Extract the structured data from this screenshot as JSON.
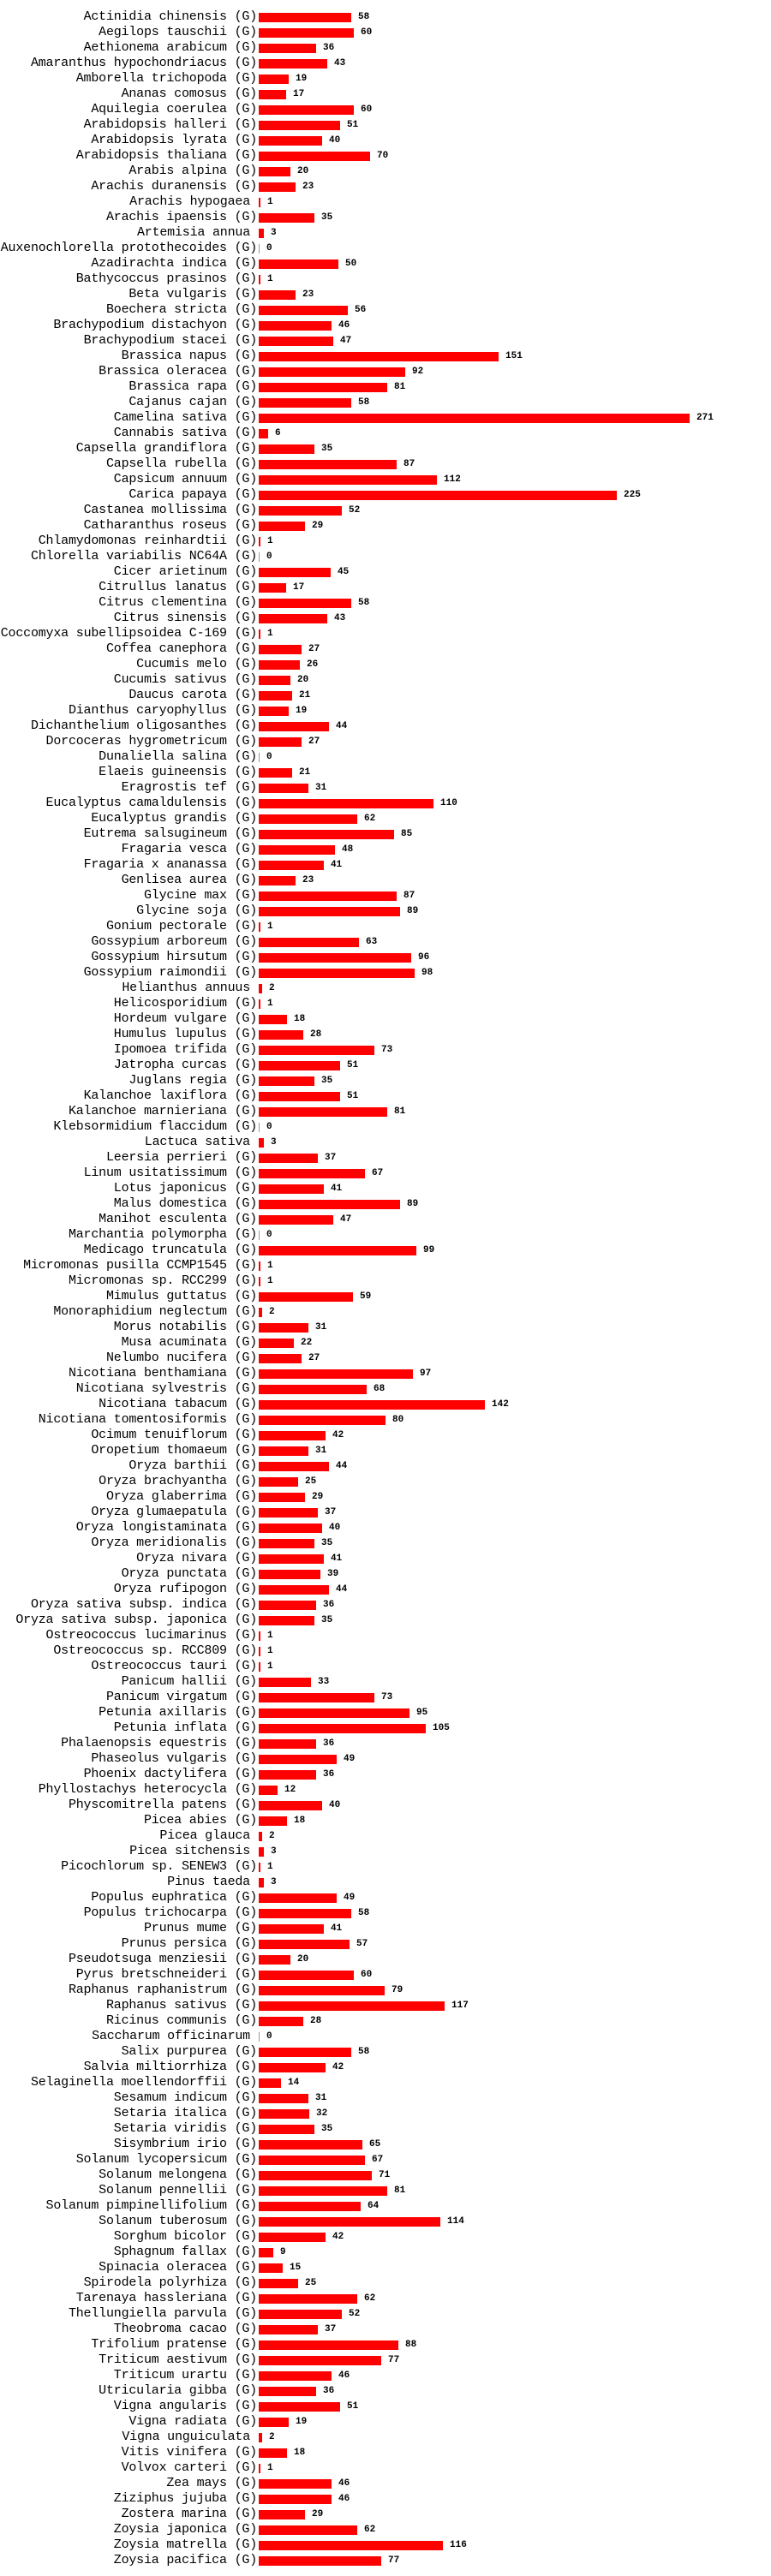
{
  "chart_data": {
    "type": "bar",
    "orientation": "horizontal",
    "title": "",
    "xlabel": "",
    "ylabel": "",
    "bar_color": "#ff0000",
    "xlim": [
      0,
      271
    ],
    "grid": false,
    "categories": [
      "Actinidia chinensis (G)",
      "Aegilops tauschii (G)",
      "Aethionema arabicum (G)",
      "Amaranthus hypochondriacus (G)",
      "Amborella trichopoda (G)",
      "Ananas comosus (G)",
      "Aquilegia coerulea (G)",
      "Arabidopsis halleri (G)",
      "Arabidopsis lyrata (G)",
      "Arabidopsis thaliana (G)",
      "Arabis alpina (G)",
      "Arachis duranensis (G)",
      "Arachis hypogaea",
      "Arachis ipaensis (G)",
      "Artemisia annua",
      "Auxenochlorella protothecoides (G)",
      "Azadirachta indica (G)",
      "Bathycoccus prasinos (G)",
      "Beta vulgaris (G)",
      "Boechera stricta (G)",
      "Brachypodium distachyon (G)",
      "Brachypodium stacei (G)",
      "Brassica napus (G)",
      "Brassica oleracea (G)",
      "Brassica rapa (G)",
      "Cajanus cajan (G)",
      "Camelina sativa (G)",
      "Cannabis sativa (G)",
      "Capsella grandiflora (G)",
      "Capsella rubella (G)",
      "Capsicum annuum (G)",
      "Carica papaya (G)",
      "Castanea mollissima (G)",
      "Catharanthus roseus (G)",
      "Chlamydomonas reinhardtii (G)",
      "Chlorella variabilis NC64A (G)",
      "Cicer arietinum (G)",
      "Citrullus lanatus (G)",
      "Citrus clementina (G)",
      "Citrus sinensis (G)",
      "Coccomyxa subellipsoidea C-169 (G)",
      "Coffea canephora (G)",
      "Cucumis melo (G)",
      "Cucumis sativus (G)",
      "Daucus carota (G)",
      "Dianthus caryophyllus (G)",
      "Dichanthelium oligosanthes (G)",
      "Dorcoceras hygrometricum (G)",
      "Dunaliella salina (G)",
      "Elaeis guineensis (G)",
      "Eragrostis tef (G)",
      "Eucalyptus camaldulensis (G)",
      "Eucalyptus grandis (G)",
      "Eutrema salsugineum (G)",
      "Fragaria vesca (G)",
      "Fragaria x ananassa (G)",
      "Genlisea aurea (G)",
      "Glycine max (G)",
      "Glycine soja (G)",
      "Gonium pectorale (G)",
      "Gossypium arboreum (G)",
      "Gossypium hirsutum (G)",
      "Gossypium raimondii (G)",
      "Helianthus annuus",
      "Helicosporidium (G)",
      "Hordeum vulgare (G)",
      "Humulus lupulus (G)",
      "Ipomoea trifida (G)",
      "Jatropha curcas (G)",
      "Juglans regia (G)",
      "Kalanchoe laxiflora (G)",
      "Kalanchoe marnieriana (G)",
      "Klebsormidium flaccidum (G)",
      "Lactuca sativa",
      "Leersia perrieri (G)",
      "Linum usitatissimum (G)",
      "Lotus japonicus (G)",
      "Malus domestica (G)",
      "Manihot esculenta (G)",
      "Marchantia polymorpha (G)",
      "Medicago truncatula (G)",
      "Micromonas pusilla CCMP1545 (G)",
      "Micromonas sp. RCC299 (G)",
      "Mimulus guttatus (G)",
      "Monoraphidium neglectum (G)",
      "Morus notabilis (G)",
      "Musa acuminata (G)",
      "Nelumbo nucifera (G)",
      "Nicotiana benthamiana (G)",
      "Nicotiana sylvestris (G)",
      "Nicotiana tabacum (G)",
      "Nicotiana tomentosiformis (G)",
      "Ocimum tenuiflorum (G)",
      "Oropetium thomaeum (G)",
      "Oryza barthii (G)",
      "Oryza brachyantha (G)",
      "Oryza glaberrima (G)",
      "Oryza glumaepatula (G)",
      "Oryza longistaminata (G)",
      "Oryza meridionalis (G)",
      "Oryza nivara (G)",
      "Oryza punctata (G)",
      "Oryza rufipogon (G)",
      "Oryza sativa subsp. indica (G)",
      "Oryza sativa subsp. japonica (G)",
      "Ostreococcus lucimarinus (G)",
      "Ostreococcus sp. RCC809 (G)",
      "Ostreococcus tauri (G)",
      "Panicum hallii (G)",
      "Panicum virgatum (G)",
      "Petunia axillaris (G)",
      "Petunia inflata (G)",
      "Phalaenopsis equestris (G)",
      "Phaseolus vulgaris (G)",
      "Phoenix dactylifera (G)",
      "Phyllostachys heterocycla (G)",
      "Physcomitrella patens (G)",
      "Picea abies (G)",
      "Picea glauca",
      "Picea sitchensis",
      "Picochlorum sp. SENEW3 (G)",
      "Pinus taeda",
      "Populus euphratica (G)",
      "Populus trichocarpa (G)",
      "Prunus mume (G)",
      "Prunus persica (G)",
      "Pseudotsuga menziesii (G)",
      "Pyrus bretschneideri (G)",
      "Raphanus raphanistrum (G)",
      "Raphanus sativus (G)",
      "Ricinus communis (G)",
      "Saccharum officinarum",
      "Salix purpurea (G)",
      "Salvia miltiorrhiza (G)",
      "Selaginella moellendorffii (G)",
      "Sesamum indicum (G)",
      "Setaria italica (G)",
      "Setaria viridis (G)",
      "Sisymbrium irio (G)",
      "Solanum lycopersicum (G)",
      "Solanum melongena (G)",
      "Solanum pennellii (G)",
      "Solanum pimpinellifolium (G)",
      "Solanum tuberosum (G)",
      "Sorghum bicolor (G)",
      "Sphagnum fallax (G)",
      "Spinacia oleracea (G)",
      "Spirodela polyrhiza (G)",
      "Tarenaya hassleriana (G)",
      "Thellungiella parvula (G)",
      "Theobroma cacao (G)",
      "Trifolium pratense (G)",
      "Triticum aestivum (G)",
      "Triticum urartu (G)",
      "Utricularia gibba (G)",
      "Vigna angularis (G)",
      "Vigna radiata (G)",
      "Vigna unguiculata",
      "Vitis vinifera (G)",
      "Volvox carteri (G)",
      "Zea mays (G)",
      "Ziziphus jujuba (G)",
      "Zostera marina (G)",
      "Zoysia japonica (G)",
      "Zoysia matrella (G)",
      "Zoysia pacifica (G)"
    ],
    "values": [
      58,
      60,
      36,
      43,
      19,
      17,
      60,
      51,
      40,
      70,
      20,
      23,
      1,
      35,
      3,
      0,
      50,
      1,
      23,
      56,
      46,
      47,
      151,
      92,
      81,
      58,
      271,
      6,
      35,
      87,
      112,
      225,
      52,
      29,
      1,
      0,
      45,
      17,
      58,
      43,
      1,
      27,
      26,
      20,
      21,
      19,
      44,
      27,
      0,
      21,
      31,
      110,
      62,
      85,
      48,
      41,
      23,
      87,
      89,
      1,
      63,
      96,
      98,
      2,
      1,
      18,
      28,
      73,
      51,
      35,
      51,
      81,
      0,
      3,
      37,
      67,
      41,
      89,
      47,
      0,
      99,
      1,
      1,
      59,
      2,
      31,
      22,
      27,
      97,
      68,
      142,
      80,
      42,
      31,
      44,
      25,
      29,
      37,
      40,
      35,
      41,
      39,
      44,
      36,
      35,
      1,
      1,
      1,
      33,
      73,
      95,
      105,
      36,
      49,
      36,
      12,
      40,
      18,
      2,
      3,
      1,
      3,
      49,
      58,
      41,
      57,
      20,
      60,
      79,
      117,
      28,
      0,
      58,
      42,
      14,
      31,
      32,
      35,
      65,
      67,
      71,
      81,
      64,
      114,
      42,
      9,
      15,
      25,
      62,
      52,
      37,
      88,
      77,
      46,
      36,
      51,
      19,
      2,
      18,
      1,
      46,
      46,
      29,
      62,
      116,
      77
    ]
  }
}
